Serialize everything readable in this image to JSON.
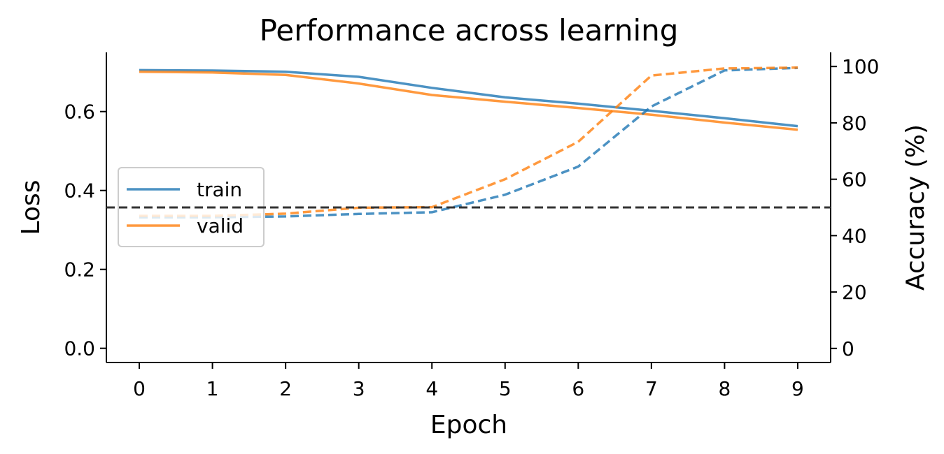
{
  "chart_data": {
    "type": "line",
    "title": "Performance across learning",
    "xlabel": "Epoch",
    "ylabel": "Loss",
    "y2label": "Accuracy (%)",
    "x": [
      0,
      1,
      2,
      3,
      4,
      5,
      6,
      7,
      8,
      9
    ],
    "xlim": [
      -0.45,
      9.45
    ],
    "ylim": [
      -0.036,
      0.75
    ],
    "y2lim": [
      -5,
      105
    ],
    "x_ticks": [
      "0",
      "1",
      "2",
      "3",
      "4",
      "5",
      "6",
      "7",
      "8",
      "9"
    ],
    "y_ticks": [
      "0.0",
      "0.2",
      "0.4",
      "0.6"
    ],
    "y2_ticks": [
      "0",
      "20",
      "40",
      "60",
      "80",
      "100"
    ],
    "grid": false,
    "legend": {
      "placement": "center-left",
      "entries": [
        "train",
        "valid"
      ]
    },
    "series": [
      {
        "name": "train",
        "axis": "loss",
        "style": "solid",
        "color": "#1f77b4",
        "values": [
          0.705,
          0.704,
          0.701,
          0.688,
          0.66,
          0.636,
          0.62,
          0.602,
          0.583,
          0.563
        ]
      },
      {
        "name": "valid",
        "axis": "loss",
        "style": "solid",
        "color": "#ff7f0e",
        "values": [
          0.701,
          0.699,
          0.693,
          0.671,
          0.642,
          0.625,
          0.609,
          0.592,
          0.572,
          0.554
        ]
      },
      {
        "axis": "accuracy",
        "style": "dashed",
        "color": "#1f77b4",
        "values": [
          46.5,
          46.5,
          46.8,
          47.7,
          48.3,
          54.5,
          64.5,
          85.8,
          98.6,
          99.5
        ]
      },
      {
        "axis": "accuracy",
        "style": "dashed",
        "color": "#ff7f0e",
        "values": [
          47.0,
          47.0,
          47.8,
          49.9,
          50.1,
          60.0,
          73.3,
          96.8,
          99.3,
          99.6
        ]
      }
    ],
    "reference_line": {
      "axis": "accuracy",
      "value": 50,
      "style": "dashed",
      "color": "#333333"
    }
  }
}
